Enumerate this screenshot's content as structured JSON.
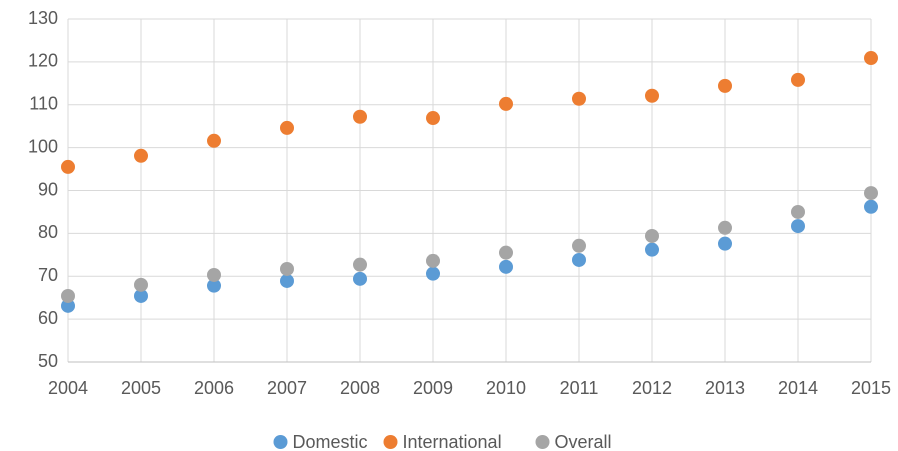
{
  "chart_data": {
    "type": "scatter",
    "x": [
      2004,
      2005,
      2006,
      2007,
      2008,
      2009,
      2010,
      2011,
      2012,
      2013,
      2014,
      2015
    ],
    "series": [
      {
        "name": "Domestic",
        "color": "#5b9bd5",
        "values": [
          63.1,
          65.4,
          67.8,
          68.9,
          69.4,
          70.6,
          72.2,
          73.8,
          76.2,
          77.6,
          81.7,
          86.2
        ]
      },
      {
        "name": "International",
        "color": "#ed7d31",
        "values": [
          95.5,
          98.1,
          101.6,
          104.6,
          107.2,
          106.9,
          110.2,
          111.4,
          112.1,
          114.4,
          115.8,
          120.9
        ]
      },
      {
        "name": "Overall",
        "color": "#a5a5a5",
        "values": [
          65.4,
          68.0,
          70.3,
          71.7,
          72.7,
          73.6,
          75.5,
          77.1,
          79.4,
          81.3,
          85.0,
          89.4
        ]
      }
    ],
    "xlim": [
      2004,
      2015
    ],
    "xticks": [
      2004,
      2005,
      2006,
      2007,
      2008,
      2009,
      2010,
      2011,
      2012,
      2013,
      2014,
      2015
    ],
    "ylim": [
      50,
      130
    ],
    "yticks": [
      50,
      60,
      70,
      80,
      90,
      100,
      110,
      120,
      130
    ],
    "grid": true,
    "legend": "bottom"
  }
}
